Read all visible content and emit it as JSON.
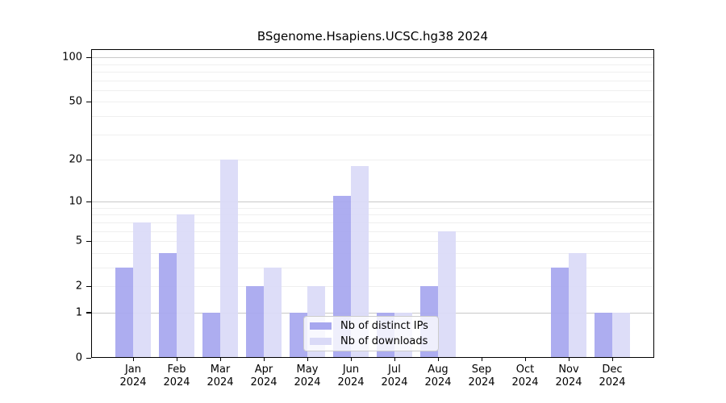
{
  "chart_data": {
    "type": "bar",
    "title": "BSgenome.Hsapiens.UCSC.hg38 2024",
    "categories": [
      "Jan",
      "Feb",
      "Mar",
      "Apr",
      "May",
      "Jun",
      "Jul",
      "Aug",
      "Sep",
      "Oct",
      "Nov",
      "Dec"
    ],
    "year_label": "2024",
    "series": [
      {
        "name": "Nb of distinct IPs",
        "color": "#a7a7ef",
        "values": [
          3,
          4,
          1,
          2,
          1,
          11,
          1,
          2,
          0,
          0,
          3,
          1
        ]
      },
      {
        "name": "Nb of downloads",
        "color": "#dadaf7",
        "values": [
          7,
          8,
          20,
          3,
          2,
          18,
          1,
          6,
          0,
          0,
          4,
          1
        ]
      }
    ],
    "y_axis": {
      "scale": "log1p",
      "ticks": [
        0,
        1,
        2,
        5,
        10,
        20,
        50,
        100
      ],
      "major_gridlines": [
        1,
        10,
        100
      ],
      "minor_gridlines": [
        2,
        3,
        4,
        5,
        6,
        7,
        8,
        9,
        20,
        30,
        40,
        50,
        60,
        70,
        80,
        90
      ],
      "range": [
        0,
        113
      ]
    },
    "xlabel": "",
    "ylabel": "",
    "grid": true,
    "legend": {
      "position": "lower-center"
    }
  },
  "colors": {
    "axis": "#000000",
    "major_grid": "#c9c9c9",
    "minor_grid": "#efefef",
    "legend_border": "#cccccc"
  }
}
